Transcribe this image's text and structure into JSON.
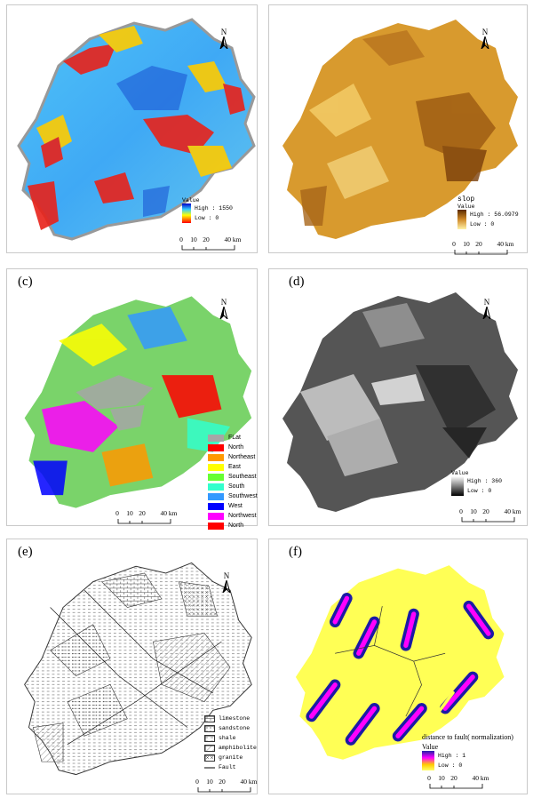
{
  "panels": {
    "a": {
      "label": "",
      "legend_title": "Value",
      "high": "High : 1550",
      "low": "Low : 0"
    },
    "b": {
      "label": "",
      "legend_title_1": "slop",
      "legend_title_2": "Value",
      "high": "High : 56.0979",
      "low": "Low : 0"
    },
    "c": {
      "label": "(c)",
      "aspect_classes": [
        {
          "name": "FLat",
          "color": "#a6a6a6"
        },
        {
          "name": "North",
          "color": "#ff0000"
        },
        {
          "name": "Northeast",
          "color": "#ff9900"
        },
        {
          "name": "East",
          "color": "#ffff00"
        },
        {
          "name": "Southeast",
          "color": "#66ff33"
        },
        {
          "name": "South",
          "color": "#33ffcc"
        },
        {
          "name": "Southwest",
          "color": "#3399ff"
        },
        {
          "name": "West",
          "color": "#0000ff"
        },
        {
          "name": "Northwest",
          "color": "#ff00ff"
        },
        {
          "name": "North",
          "color": "#ff0000"
        }
      ]
    },
    "d": {
      "label": "(d)",
      "legend_title": "Value",
      "high": "High : 360",
      "low": "Low : 0"
    },
    "e": {
      "label": "(e)",
      "lithology": [
        {
          "name": "limestone"
        },
        {
          "name": "sandstone"
        },
        {
          "name": "shale"
        },
        {
          "name": "amphibolite"
        },
        {
          "name": "granite"
        },
        {
          "name": "Fault"
        }
      ]
    },
    "f": {
      "label": "(f)",
      "title": "distance to fault( normalization)",
      "legend_title": "Value",
      "high": "High : 1",
      "low": "Low : 0"
    }
  },
  "north_label": "N",
  "scale": {
    "ticks": [
      "0",
      "10",
      "20",
      "40 km"
    ]
  },
  "colors": {
    "dem_low": "#3fa9f5",
    "dem_high": "#e8221a",
    "slope": "#c8861b",
    "aspect_flat": "#a6a6a6",
    "hillshade": "#555555",
    "fault_far": "#1a1aa6",
    "fault_near": "#ffff55"
  }
}
